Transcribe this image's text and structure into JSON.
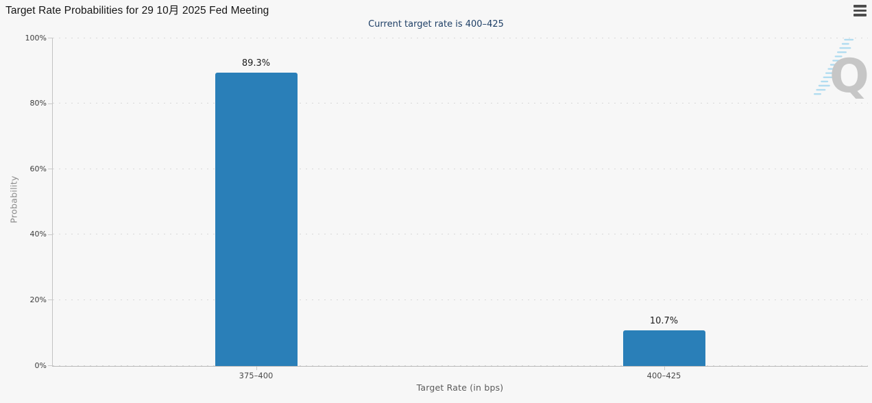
{
  "page": {
    "title": "Target Rate Probabilities for 29 10月 2025 Fed Meeting",
    "subtitle": "Current target rate is 400–425"
  },
  "icons": {
    "menu": "hamburger-menu-icon",
    "watermark": "quikstrike-q-logo"
  },
  "colors": {
    "background": "#f7f7f7",
    "bar": "#2a7fb8",
    "subtitle_text": "#1e3f66",
    "gridline": "#d8d8d8",
    "axis": "#b8b8b8",
    "watermark_gray": "#c6c6c6",
    "watermark_blue": "#9fd4ee"
  },
  "chart_data": {
    "type": "bar",
    "title": "Target Rate Probabilities for 29 10月 2025 Fed Meeting",
    "subtitle": "Current target rate is 400–425",
    "categories": [
      "375–400",
      "400–425"
    ],
    "values": [
      89.3,
      10.7
    ],
    "value_labels": [
      "89.3%",
      "10.7%"
    ],
    "xlabel": "Target Rate (in bps)",
    "ylabel": "Probability",
    "ylim": [
      0,
      100
    ],
    "yticks": [
      0,
      20,
      40,
      60,
      80,
      100
    ],
    "ytick_labels": [
      "0%",
      "20%",
      "40%",
      "60%",
      "80%",
      "100%"
    ],
    "grid": "horizontal-dotted",
    "legend": "none",
    "bar_color": "#2a7fb8"
  }
}
